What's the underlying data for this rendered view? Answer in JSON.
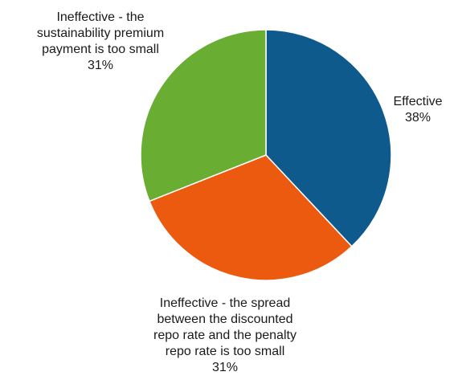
{
  "chart_data": {
    "type": "pie",
    "title": "",
    "start_angle_deg": 0,
    "direction": "clockwise",
    "slices": [
      {
        "label_lines": [
          "Effective"
        ],
        "value": 38,
        "value_label": "38%",
        "color": "#0f5a8c"
      },
      {
        "label_lines": [
          "Ineffective - the spread",
          "between the discounted",
          "repo rate and the penalty",
          "repo rate is too small"
        ],
        "value": 31,
        "value_label": "31%",
        "color": "#eb5a0f"
      },
      {
        "label_lines": [
          "Ineffective - the",
          "sustainability premium",
          "payment is too small"
        ],
        "value": 31,
        "value_label": "31%",
        "color": "#69ad32"
      }
    ],
    "legend": "none"
  }
}
